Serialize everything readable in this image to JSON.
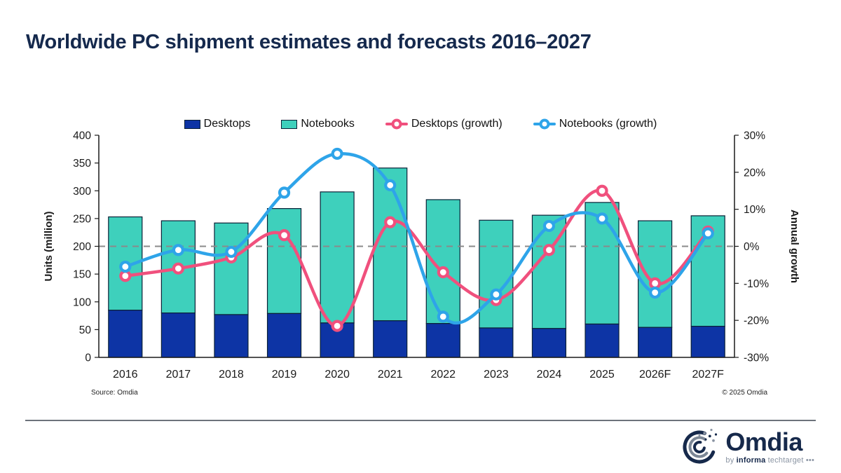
{
  "title": "Worldwide PC shipment estimates and forecasts 2016–2027",
  "source": "Source: Omdia",
  "copyright": "© 2025 Omdia",
  "logo": {
    "name": "Omdia",
    "by_prefix": "by ",
    "informa": "informa",
    "techtarget": " techtarget ",
    "dots": "•••"
  },
  "colors": {
    "title": "#15294d",
    "desktops": "#0d34a5",
    "notebooks": "#3ed0bc",
    "desktops_growth": "#f0507d",
    "notebooks_growth": "#2ea4e9",
    "bar_border": "#0b2136",
    "axis": "#1a1a1a",
    "zero_line": "#8a8a8a",
    "logo_navy": "#16294b",
    "logo_gray": "#8a94a3"
  },
  "chart_data": {
    "type": "combo: stacked bar (units) + line (growth %)",
    "categories": [
      "2016",
      "2017",
      "2018",
      "2019",
      "2020",
      "2021",
      "2022",
      "2023",
      "2024",
      "2025",
      "2026F",
      "2027F"
    ],
    "bar_series": [
      {
        "name": "Desktops",
        "color": "#0d34a5",
        "values": [
          85,
          80,
          77,
          79,
          62,
          66,
          61,
          53,
          52,
          60,
          54,
          56
        ]
      },
      {
        "name": "Notebooks",
        "color": "#3ed0bc",
        "values": [
          168,
          166,
          165,
          189,
          236,
          275,
          223,
          194,
          204,
          219,
          192,
          199
        ]
      }
    ],
    "stacked_totals": [
      253,
      246,
      242,
      268,
      298,
      341,
      284,
      247,
      256,
      279,
      246,
      255
    ],
    "line_series": [
      {
        "name": "Desktops (growth)",
        "color": "#f0507d",
        "values_pct": [
          -8,
          -6,
          -3,
          3,
          -21.5,
          6.5,
          -7,
          -14.5,
          -1,
          15,
          -10,
          4
        ]
      },
      {
        "name": "Notebooks (growth)",
        "color": "#2ea4e9",
        "values_pct": [
          -5.5,
          -1,
          -1.5,
          14.5,
          25,
          16.5,
          -19,
          -13,
          5.5,
          7.5,
          -12.5,
          3.5
        ]
      }
    ],
    "left_axis": {
      "label": "Units (million)",
      "min": 0,
      "max": 400,
      "step": 50
    },
    "right_axis": {
      "label": "Annual growth",
      "min": -30,
      "max": 30,
      "step": 10,
      "suffix": "%"
    },
    "zero_line_dashed": true,
    "legend_position": "top",
    "legend": [
      "Desktops",
      "Notebooks",
      "Desktops (growth)",
      "Notebooks (growth)"
    ]
  }
}
